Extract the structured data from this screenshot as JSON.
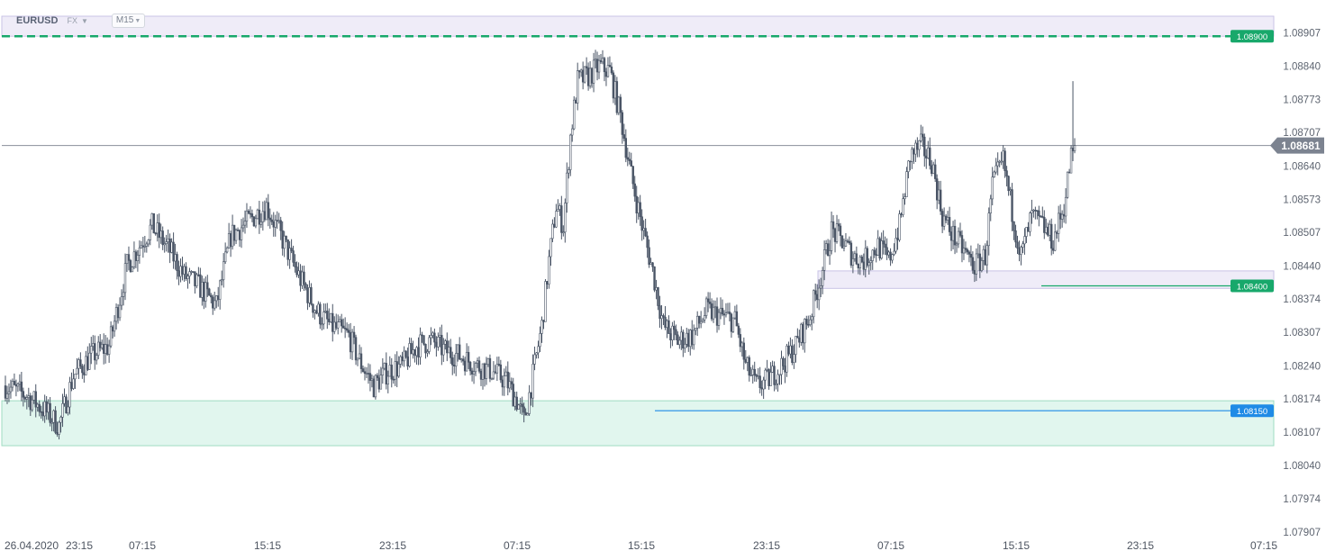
{
  "header": {
    "symbol": "EURUSD",
    "market": "FX",
    "timeframe": "M15"
  },
  "chart_data": {
    "type": "candlestick",
    "y_range": [
      1.07907,
      1.0894
    ],
    "y_ticks": [
      "1.08907",
      "1.08840",
      "1.08773",
      "1.08707",
      "1.08640",
      "1.08573",
      "1.08507",
      "1.08440",
      "1.08374",
      "1.08307",
      "1.08240",
      "1.08174",
      "1.08107",
      "1.08040",
      "1.07974",
      "1.07907"
    ],
    "x_ticks": [
      "26.04.2020",
      "23:15",
      "07:15",
      "15:15",
      "23:15",
      "07:15",
      "15:15",
      "23:15",
      "07:15",
      "15:15",
      "23:15",
      "07:15"
    ],
    "current_price": "1.08681",
    "price_lines": [
      {
        "label": "1.08900",
        "value": 1.089,
        "color": "#18a86b",
        "style": "dashed"
      },
      {
        "label": "1.08400",
        "value": 1.084,
        "color": "#18a86b",
        "style": "solid"
      },
      {
        "label": "1.08150",
        "value": 1.0815,
        "color": "#1f8be6",
        "style": "solid"
      }
    ],
    "zones": [
      {
        "from": 1.089,
        "to": 1.0896,
        "color": "#efecf8"
      },
      {
        "from": 1.08395,
        "to": 1.0843,
        "color": "#efecf8"
      },
      {
        "from": 1.0808,
        "to": 1.0817,
        "color": "#e1f6ee"
      }
    ],
    "bull_color": "#ffffff",
    "bear_color": "#4a5566",
    "close_path": [
      [
        0,
        1.082
      ],
      [
        12,
        1.0818
      ],
      [
        22,
        1.0815
      ],
      [
        30,
        1.0812
      ],
      [
        38,
        1.0822
      ],
      [
        48,
        1.0826
      ],
      [
        58,
        1.0828
      ],
      [
        68,
        1.0844
      ],
      [
        82,
        1.0852
      ],
      [
        92,
        1.0847
      ],
      [
        100,
        1.0842
      ],
      [
        108,
        1.084
      ],
      [
        118,
        1.0836
      ],
      [
        126,
        1.085
      ],
      [
        136,
        1.0853
      ],
      [
        146,
        1.0856
      ],
      [
        154,
        1.085
      ],
      [
        164,
        1.0842
      ],
      [
        174,
        1.0835
      ],
      [
        182,
        1.0832
      ],
      [
        192,
        1.083
      ],
      [
        198,
        1.0825
      ],
      [
        206,
        1.082
      ],
      [
        214,
        1.0823
      ],
      [
        222,
        1.0824
      ],
      [
        230,
        1.0828
      ],
      [
        238,
        1.0829
      ],
      [
        246,
        1.0827
      ],
      [
        254,
        1.0826
      ],
      [
        264,
        1.0824
      ],
      [
        272,
        1.0823
      ],
      [
        280,
        1.0821
      ],
      [
        286,
        1.0817
      ],
      [
        290,
        1.0813
      ],
      [
        294,
        1.082
      ],
      [
        300,
        1.0832
      ],
      [
        304,
        1.0845
      ],
      [
        308,
        1.0856
      ],
      [
        312,
        1.0852
      ],
      [
        316,
        1.087
      ],
      [
        320,
        1.0881
      ],
      [
        326,
        1.0882
      ],
      [
        332,
        1.0884
      ],
      [
        338,
        1.0883
      ],
      [
        344,
        1.0874
      ],
      [
        350,
        1.0862
      ],
      [
        356,
        1.0852
      ],
      [
        362,
        1.0843
      ],
      [
        368,
        1.0832
      ],
      [
        376,
        1.0829
      ],
      [
        384,
        1.083
      ],
      [
        392,
        1.0835
      ],
      [
        400,
        1.0834
      ],
      [
        408,
        1.0833
      ],
      [
        414,
        1.0824
      ],
      [
        420,
        1.082
      ],
      [
        426,
        1.0821
      ],
      [
        434,
        1.0824
      ],
      [
        442,
        1.0828
      ],
      [
        450,
        1.0834
      ],
      [
        456,
        1.0842
      ],
      [
        462,
        1.0851
      ],
      [
        468,
        1.0849
      ],
      [
        474,
        1.0846
      ],
      [
        480,
        1.0845
      ],
      [
        488,
        1.0848
      ],
      [
        494,
        1.0845
      ],
      [
        500,
        1.0852
      ],
      [
        506,
        1.0866
      ],
      [
        512,
        1.0868
      ],
      [
        518,
        1.0865
      ],
      [
        524,
        1.0854
      ],
      [
        530,
        1.085
      ],
      [
        536,
        1.0847
      ],
      [
        542,
        1.0844
      ],
      [
        548,
        1.0846
      ],
      [
        552,
        1.086
      ],
      [
        558,
        1.0865
      ],
      [
        564,
        1.0853
      ],
      [
        568,
        1.0846
      ],
      [
        574,
        1.0854
      ],
      [
        580,
        1.0852
      ],
      [
        586,
        1.0849
      ],
      [
        592,
        1.0856
      ],
      [
        596,
        1.0866
      ],
      [
        598,
        1.0867
      ]
    ]
  }
}
